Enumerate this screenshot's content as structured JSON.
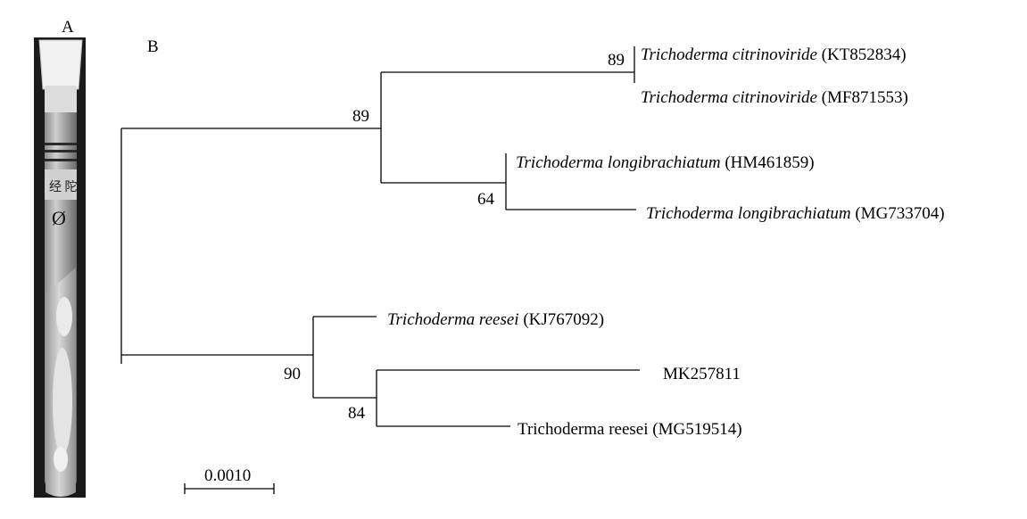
{
  "panels": {
    "a_label": "A",
    "b_label": "B"
  },
  "tube_photo": {
    "handwriting": "经 陀",
    "mark": "Ø"
  },
  "tree": {
    "bootstrap": {
      "root_upper": "89",
      "citrinoviride_pair": "89",
      "longibrachiatum_pair": "64",
      "reesei_clade": "90",
      "mk_pair": "84"
    },
    "taxa": [
      {
        "genus_species": "Trichoderma citrinoviride",
        "accession": "(KT852834)",
        "italic": true
      },
      {
        "genus_species": "Trichoderma citrinoviride",
        "accession": "(MF871553)",
        "italic": true
      },
      {
        "genus_species": "Trichoderma longibrachiatum",
        "accession": "(HM461859)",
        "italic": true
      },
      {
        "genus_species": "Trichoderma longibrachiatum",
        "accession": "(MG733704)",
        "italic": true
      },
      {
        "genus_species": "Trichoderma reesei",
        "accession": "(KJ767092)",
        "italic": true
      },
      {
        "genus_species": "",
        "accession": "MK257811",
        "italic": false
      },
      {
        "genus_species": "Trichoderma reesei",
        "accession": "(MG519514)",
        "italic": false
      }
    ],
    "scale_bar_label": "0.0010"
  }
}
